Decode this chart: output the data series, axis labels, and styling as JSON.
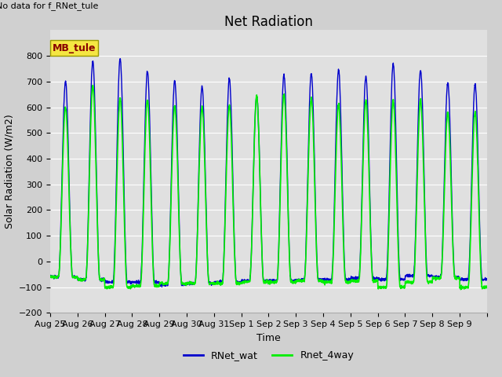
{
  "title": "Net Radiation",
  "xlabel": "Time",
  "ylabel": "Solar Radiation (W/m2)",
  "annotation": "No data for f_RNet_tule",
  "legend_label": "MB_tule",
  "ylim": [
    -200,
    900
  ],
  "yticks": [
    -200,
    -100,
    0,
    100,
    200,
    300,
    400,
    500,
    600,
    700,
    800
  ],
  "axes_bg": "#e0e0e0",
  "fig_bg": "#d0d0d0",
  "line1_color": "#0000cc",
  "line2_color": "#00ee00",
  "line1_label": "RNet_wat",
  "line2_label": "Rnet_4way",
  "n_days": 16,
  "points_per_day": 144,
  "day_labels": [
    "Aug 25",
    "Aug 26",
    "Aug 27",
    "Aug 28",
    "Aug 29",
    "Aug 30",
    "Aug 31",
    "Sep 1",
    "Sep 2",
    "Sep 3",
    "Sep 4",
    "Sep 5",
    "Sep 6",
    "Sep 7",
    "Sep 8",
    "Sep 9"
  ],
  "peaks_blue": [
    700,
    780,
    790,
    740,
    705,
    680,
    710,
    645,
    725,
    730,
    745,
    720,
    770,
    745,
    695,
    690
  ],
  "peaks_green": [
    600,
    685,
    635,
    630,
    605,
    600,
    605,
    645,
    650,
    635,
    610,
    625,
    625,
    630,
    580,
    580
  ],
  "troughs_blue": [
    -60,
    -70,
    -80,
    -80,
    -90,
    -85,
    -80,
    -75,
    -75,
    -70,
    -70,
    -65,
    -70,
    -55,
    -60,
    -70
  ],
  "troughs_green": [
    -60,
    -70,
    -100,
    -95,
    -85,
    -85,
    -85,
    -80,
    -80,
    -75,
    -80,
    -75,
    -100,
    -80,
    -65,
    -100
  ],
  "mb_box_facecolor": "#f5e642",
  "mb_box_edgecolor": "#999900",
  "mb_text_color": "#880000",
  "title_fontsize": 12,
  "label_fontsize": 9,
  "tick_fontsize": 8,
  "legend_fontsize": 9
}
